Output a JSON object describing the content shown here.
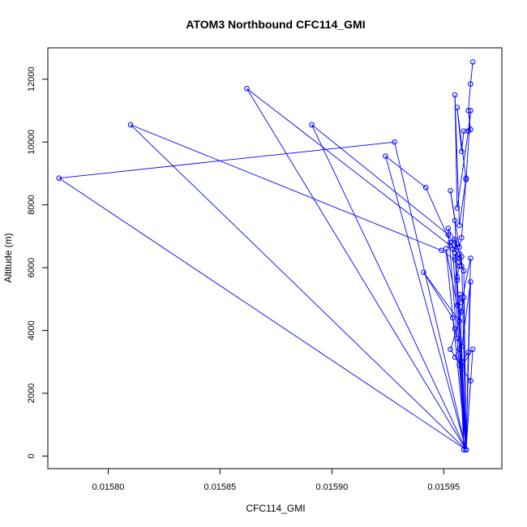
{
  "chart_data": {
    "type": "line+scatter",
    "title": "ATOM3 Northbound CFC114_GMI",
    "xlabel": "CFC114_GMI",
    "ylabel": "Altitude (m)",
    "xlim": [
      0.015773,
      0.015976
    ],
    "ylim": [
      -400,
      13000
    ],
    "xticks": [
      0.0158,
      0.01585,
      0.0159,
      0.01595
    ],
    "xtick_labels": [
      "0.01580",
      "0.01585",
      "0.01590",
      "0.01595"
    ],
    "yticks": [
      0,
      2000,
      4000,
      6000,
      8000,
      10000,
      12000
    ],
    "ytick_labels": [
      "0",
      "2000",
      "4000",
      "6000",
      "8000",
      "10000",
      "12000"
    ],
    "series_color": "#0000ff",
    "grid": false,
    "legend": "none",
    "x": [
      0.015963,
      0.015962,
      0.015961,
      0.015962,
      0.015959,
      0.015958,
      0.015956,
      0.01596,
      0.015962,
      0.015961,
      0.015956,
      0.015955,
      0.015957,
      0.01596,
      0.015958,
      0.015957,
      0.015953,
      0.015955,
      0.015956,
      0.01596,
      0.015862,
      0.015953,
      0.015955,
      0.015957,
      0.015958,
      0.015955,
      0.01596,
      0.01581,
      0.015949,
      0.015955,
      0.015957,
      0.015956,
      0.01596,
      0.015891,
      0.015952,
      0.015956,
      0.015958,
      0.01596,
      0.015928,
      0.015778,
      0.01596,
      0.015924,
      0.015942,
      0.015953,
      0.015957,
      0.015959,
      0.01596,
      0.015952,
      0.015956,
      0.015954,
      0.01596,
      0.015962,
      0.015958,
      0.015957,
      0.01596,
      0.015951,
      0.015956,
      0.015958,
      0.015957,
      0.015941,
      0.015954,
      0.015955,
      0.015956,
      0.015958,
      0.015959,
      0.015957,
      0.015955,
      0.015958,
      0.015961,
      0.01596,
      0.015963,
      0.015958,
      0.015953,
      0.015957,
      0.015959,
      0.01596,
      0.015962,
      0.015957,
      0.015962,
      0.01596
    ],
    "y": [
      12550,
      11850,
      11000,
      10400,
      10350,
      9700,
      11100,
      8800,
      11000,
      10350,
      7900,
      11500,
      7350,
      8850,
      6950,
      6650,
      8450,
      7500,
      5600,
      200,
      11700,
      6700,
      6900,
      6450,
      6050,
      6450,
      200,
      10550,
      6550,
      6250,
      6050,
      5700,
      200,
      10550,
      7050,
      6650,
      6350,
      200,
      10000,
      8850,
      200,
      9550,
      8550,
      6800,
      6300,
      5900,
      200,
      7250,
      6750,
      6600,
      200,
      6300,
      4900,
      5150,
      200,
      6600,
      4800,
      4600,
      4300,
      5850,
      4400,
      4050,
      3750,
      3500,
      200,
      3400,
      3150,
      3000,
      3300,
      200,
      3400,
      2850,
      3400,
      4300,
      5050,
      200,
      5550,
      2900,
      2400,
      200
    ]
  }
}
